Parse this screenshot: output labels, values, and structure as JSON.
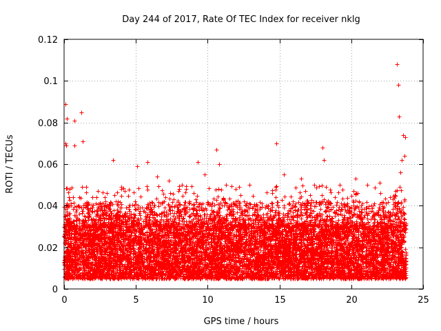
{
  "chart_data": {
    "type": "scatter",
    "title": "Day 244 of 2017, Rate Of TEC Index for receiver nklg",
    "xlabel": "GPS time / hours",
    "ylabel": "ROTI / TECUs",
    "xlim": [
      0,
      25
    ],
    "ylim": [
      0,
      0.12
    ],
    "x_ticks": [
      0,
      5,
      10,
      15,
      20,
      25
    ],
    "x_tick_labels": [
      "0",
      "5",
      "10",
      "15",
      "20",
      "25"
    ],
    "y_ticks": [
      0,
      0.02,
      0.04,
      0.06,
      0.08,
      0.1,
      0.12
    ],
    "y_tick_labels": [
      "0",
      "0.02",
      "0.04",
      "0.06",
      "0.08",
      "0.1",
      "0.12"
    ],
    "grid": true,
    "marker": "+",
    "color": "#ff0000",
    "series": [
      {
        "name": "ROTI",
        "typical_range": [
          0.005,
          0.03
        ],
        "outlier_points": [
          [
            0.1,
            0.089
          ],
          [
            0.2,
            0.082
          ],
          [
            0.1,
            0.07
          ],
          [
            0.15,
            0.069
          ],
          [
            0.7,
            0.081
          ],
          [
            0.7,
            0.069
          ],
          [
            1.2,
            0.085
          ],
          [
            1.3,
            0.071
          ],
          [
            0.6,
            0.044
          ],
          [
            1.6,
            0.039
          ],
          [
            3.4,
            0.062
          ],
          [
            3.5,
            0.045
          ],
          [
            4.2,
            0.047
          ],
          [
            5.1,
            0.059
          ],
          [
            5.8,
            0.061
          ],
          [
            6.5,
            0.054
          ],
          [
            7.3,
            0.052
          ],
          [
            8.2,
            0.05
          ],
          [
            9.3,
            0.061
          ],
          [
            9.8,
            0.055
          ],
          [
            10.6,
            0.067
          ],
          [
            10.8,
            0.06
          ],
          [
            11.3,
            0.05
          ],
          [
            12.2,
            0.049
          ],
          [
            12.9,
            0.05
          ],
          [
            14.8,
            0.07
          ],
          [
            15.3,
            0.055
          ],
          [
            16.5,
            0.053
          ],
          [
            17.4,
            0.05
          ],
          [
            18.0,
            0.068
          ],
          [
            18.1,
            0.062
          ],
          [
            19.2,
            0.05
          ],
          [
            20.3,
            0.053
          ],
          [
            21.1,
            0.05
          ],
          [
            22.0,
            0.051
          ],
          [
            23.2,
            0.108
          ],
          [
            23.25,
            0.098
          ],
          [
            23.3,
            0.083
          ],
          [
            23.6,
            0.074
          ],
          [
            23.75,
            0.073
          ],
          [
            23.5,
            0.062
          ],
          [
            23.7,
            0.064
          ],
          [
            23.4,
            0.056
          ],
          [
            23.1,
            0.047
          ],
          [
            22.7,
            0.044
          ]
        ]
      }
    ]
  }
}
